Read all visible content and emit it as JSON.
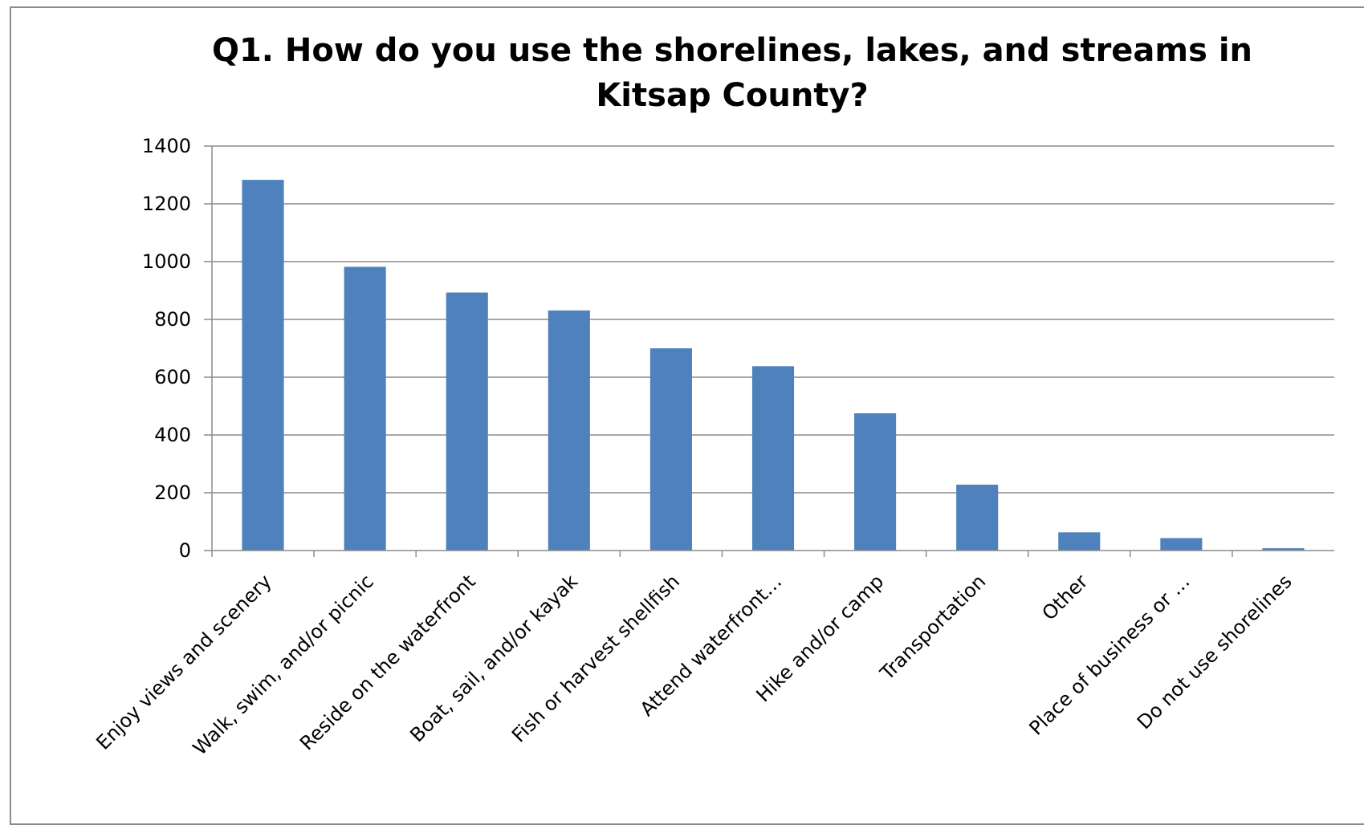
{
  "chart_data": {
    "type": "bar",
    "title": "Q1. How do you use the shorelines, lakes, and streams in Kitsap County?",
    "title_lines": [
      "Q1. How do you use the shorelines, lakes, and streams in",
      "Kitsap County?"
    ],
    "xlabel": "",
    "ylabel": "",
    "categories": [
      "Enjoy views and scenery",
      "Walk, swim, and/or picnic",
      "Reside on the waterfront",
      "Boat, sail, and/or kayak",
      "Fish or harvest shellfish",
      "Attend waterfront…",
      "Hike and/or camp",
      "Transportation",
      "Other",
      "Place of business or …",
      "Do not use shorelines"
    ],
    "values": [
      1283,
      982,
      893,
      831,
      700,
      638,
      475,
      228,
      63,
      43,
      8
    ],
    "ylim": [
      0,
      1400
    ],
    "yticks": [
      0,
      200,
      400,
      600,
      800,
      1000,
      1200,
      1400
    ],
    "grid": true,
    "legend": "none",
    "bar_color": "#4f81bd",
    "grid_color": "#8c8c8c",
    "axis_color": "#8c8c8c"
  }
}
